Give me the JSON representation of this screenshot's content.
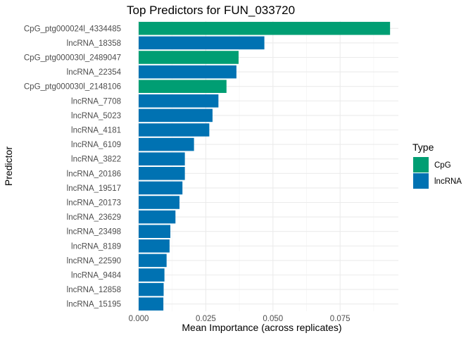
{
  "chart_data": {
    "type": "bar",
    "orientation": "horizontal",
    "title": "Top Predictors for FUN_033720",
    "xlabel": "Mean Importance (across replicates)",
    "ylabel": "Predictor",
    "xlim": [
      0,
      0.0967
    ],
    "xticks": [
      0.0,
      0.025,
      0.05,
      0.075
    ],
    "xtick_labels": [
      "0.000",
      "0.025",
      "0.050",
      "0.075"
    ],
    "grid": true,
    "legend": {
      "title": "Type",
      "position": "right",
      "entries": [
        {
          "label": "CpG",
          "color": "#009E73"
        },
        {
          "label": "lncRNA",
          "color": "#0072B2"
        }
      ]
    },
    "categories": [
      "CpG_ptg000024l_4334485",
      "lncRNA_18358",
      "CpG_ptg000030l_2489047",
      "lncRNA_22354",
      "CpG_ptg000030l_2148106",
      "lncRNA_7708",
      "lncRNA_5023",
      "lncRNA_4181",
      "lncRNA_6109",
      "lncRNA_3822",
      "lncRNA_20186",
      "lncRNA_19517",
      "lncRNA_20173",
      "lncRNA_23629",
      "lncRNA_23498",
      "lncRNA_8189",
      "lncRNA_22590",
      "lncRNA_9484",
      "lncRNA_12858",
      "lncRNA_15195"
    ],
    "values": [
      0.0936,
      0.0468,
      0.0372,
      0.0364,
      0.0327,
      0.0297,
      0.0275,
      0.0263,
      0.0206,
      0.0172,
      0.0172,
      0.0163,
      0.0152,
      0.0137,
      0.0118,
      0.0115,
      0.0104,
      0.0096,
      0.0093,
      0.0092
    ],
    "types": [
      "CpG",
      "lncRNA",
      "CpG",
      "lncRNA",
      "CpG",
      "lncRNA",
      "lncRNA",
      "lncRNA",
      "lncRNA",
      "lncRNA",
      "lncRNA",
      "lncRNA",
      "lncRNA",
      "lncRNA",
      "lncRNA",
      "lncRNA",
      "lncRNA",
      "lncRNA",
      "lncRNA",
      "lncRNA"
    ]
  }
}
